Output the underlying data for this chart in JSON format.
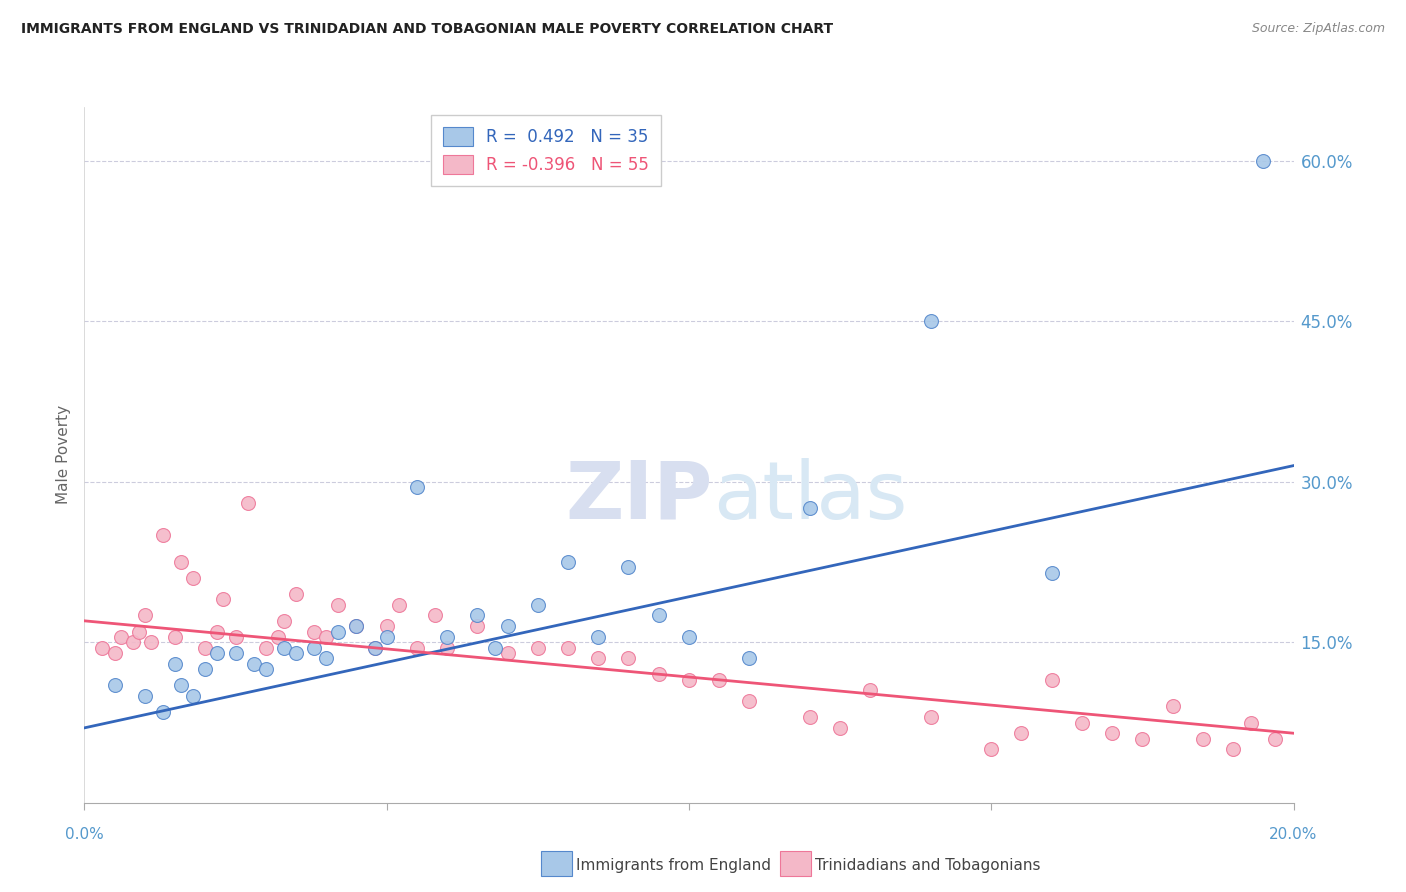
{
  "title": "IMMIGRANTS FROM ENGLAND VS TRINIDADIAN AND TOBAGONIAN MALE POVERTY CORRELATION CHART",
  "source": "Source: ZipAtlas.com",
  "ylabel": "Male Poverty",
  "xlim": [
    0.0,
    0.2
  ],
  "ylim": [
    0.0,
    0.65
  ],
  "ytick_vals": [
    0.0,
    0.15,
    0.3,
    0.45,
    0.6
  ],
  "ytick_labels": [
    "",
    "15.0%",
    "30.0%",
    "45.0%",
    "60.0%"
  ],
  "legend_blue_r": "R =  0.492",
  "legend_blue_n": "N = 35",
  "legend_pink_r": "R = -0.396",
  "legend_pink_n": "N = 55",
  "legend_label_blue": "Immigrants from England",
  "legend_label_pink": "Trinidadians and Tobagonians",
  "blue_fill": "#A8C8E8",
  "pink_fill": "#F4B8C8",
  "blue_edge": "#5588CC",
  "pink_edge": "#EE7799",
  "blue_line_color": "#3366BB",
  "pink_line_color": "#EE5577",
  "watermark_zip": "ZIP",
  "watermark_atlas": "atlas",
  "blue_points_x": [
    0.005,
    0.01,
    0.013,
    0.015,
    0.016,
    0.018,
    0.02,
    0.022,
    0.025,
    0.028,
    0.03,
    0.033,
    0.035,
    0.038,
    0.04,
    0.042,
    0.045,
    0.048,
    0.05,
    0.055,
    0.06,
    0.065,
    0.068,
    0.07,
    0.075,
    0.08,
    0.085,
    0.09,
    0.095,
    0.1,
    0.11,
    0.12,
    0.14,
    0.16,
    0.195
  ],
  "blue_points_y": [
    0.11,
    0.1,
    0.085,
    0.13,
    0.11,
    0.1,
    0.125,
    0.14,
    0.14,
    0.13,
    0.125,
    0.145,
    0.14,
    0.145,
    0.135,
    0.16,
    0.165,
    0.145,
    0.155,
    0.295,
    0.155,
    0.175,
    0.145,
    0.165,
    0.185,
    0.225,
    0.155,
    0.22,
    0.175,
    0.155,
    0.135,
    0.275,
    0.45,
    0.215,
    0.6
  ],
  "pink_points_x": [
    0.003,
    0.005,
    0.006,
    0.008,
    0.009,
    0.01,
    0.011,
    0.013,
    0.015,
    0.016,
    0.018,
    0.02,
    0.022,
    0.023,
    0.025,
    0.027,
    0.03,
    0.032,
    0.033,
    0.035,
    0.038,
    0.04,
    0.042,
    0.045,
    0.048,
    0.05,
    0.052,
    0.055,
    0.058,
    0.06,
    0.065,
    0.07,
    0.075,
    0.08,
    0.085,
    0.09,
    0.095,
    0.1,
    0.105,
    0.11,
    0.12,
    0.125,
    0.13,
    0.14,
    0.15,
    0.155,
    0.16,
    0.165,
    0.17,
    0.175,
    0.18,
    0.185,
    0.19,
    0.193,
    0.197
  ],
  "pink_points_y": [
    0.145,
    0.14,
    0.155,
    0.15,
    0.16,
    0.175,
    0.15,
    0.25,
    0.155,
    0.225,
    0.21,
    0.145,
    0.16,
    0.19,
    0.155,
    0.28,
    0.145,
    0.155,
    0.17,
    0.195,
    0.16,
    0.155,
    0.185,
    0.165,
    0.145,
    0.165,
    0.185,
    0.145,
    0.175,
    0.145,
    0.165,
    0.14,
    0.145,
    0.145,
    0.135,
    0.135,
    0.12,
    0.115,
    0.115,
    0.095,
    0.08,
    0.07,
    0.105,
    0.08,
    0.05,
    0.065,
    0.115,
    0.075,
    0.065,
    0.06,
    0.09,
    0.06,
    0.05,
    0.075,
    0.06
  ],
  "blue_line_x": [
    0.0,
    0.2
  ],
  "blue_line_y": [
    0.07,
    0.315
  ],
  "pink_line_x": [
    0.0,
    0.2
  ],
  "pink_line_y": [
    0.17,
    0.065
  ]
}
